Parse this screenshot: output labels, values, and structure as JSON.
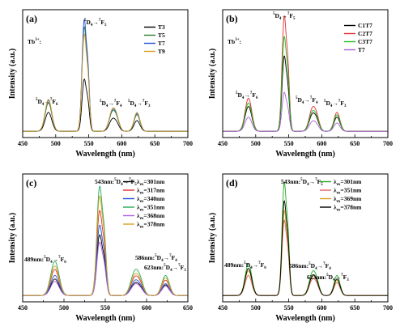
{
  "chart_data": [
    {
      "panel": "(a)",
      "type": "line",
      "xlabel": "Wavelength (nm)",
      "ylabel": "Intensity (a.u.)",
      "xlim": [
        450,
        700
      ],
      "xticks": [
        450,
        500,
        550,
        600,
        650,
        700
      ],
      "ion_label": "Tb",
      "ion_sup": "3+",
      "ion_suffix": ":",
      "annotations": [
        {
          "prefix": "",
          "pre": "5",
          "a": "D",
          "sa": "4",
          "arrow": "→",
          "post": "7",
          "b": "F",
          "sb": "6",
          "peak": 489
        },
        {
          "prefix": "",
          "pre": "5",
          "a": "D",
          "sa": "4",
          "arrow": "→",
          "post": "7",
          "b": "F",
          "sb": "5",
          "peak": 543
        },
        {
          "prefix": "",
          "pre": "5",
          "a": "D",
          "sa": "4",
          "arrow": "→",
          "post": "7",
          "b": "F",
          "sb": "4",
          "peak": 586
        },
        {
          "prefix": "",
          "pre": "5",
          "a": "D",
          "sa": "4",
          "arrow": "→",
          "post": "7",
          "b": "F",
          "sb": "3",
          "peak": 623
        }
      ],
      "legend_position": "top-right",
      "series": [
        {
          "name": "T3",
          "color": "#000000",
          "peaks": [
            0.16,
            0.43,
            0.1,
            0.09
          ]
        },
        {
          "name": "T5",
          "color": "#2a7d2a",
          "peaks": [
            0.24,
            0.86,
            0.16,
            0.14
          ]
        },
        {
          "name": "T7",
          "color": "#1f4fd8",
          "peaks": [
            0.26,
            0.92,
            0.17,
            0.15
          ]
        },
        {
          "name": "T9",
          "color": "#d8a020",
          "peaks": [
            0.27,
            0.8,
            0.18,
            0.16
          ]
        }
      ]
    },
    {
      "panel": "(b)",
      "type": "line",
      "xlabel": "Wavelength (nm)",
      "ylabel": "Intensity (a.u.)",
      "xlim": [
        450,
        700
      ],
      "xticks": [
        450,
        500,
        550,
        600,
        650,
        700
      ],
      "ion_label": "Tb",
      "ion_sup": "3+",
      "ion_suffix": ":",
      "annotations": [
        {
          "prefix": "",
          "pre": "5",
          "a": "D",
          "sa": "4",
          "arrow": "→",
          "post": "7",
          "b": "F",
          "sb": "6",
          "peak": 489
        },
        {
          "prefix": "",
          "pre": "5",
          "a": "D",
          "sa": "4",
          "arrow": "→",
          "post": "7",
          "b": "F",
          "sb": "5",
          "peak": 543
        },
        {
          "prefix": "",
          "pre": "5",
          "a": "D",
          "sa": "4",
          "arrow": "→",
          "post": "7",
          "b": "F",
          "sb": "4",
          "peak": 586
        },
        {
          "prefix": "",
          "pre": "5",
          "a": "D",
          "sa": "4",
          "arrow": "→",
          "post": "7",
          "b": "F",
          "sb": "3",
          "peak": 623
        }
      ],
      "legend_position": "top-right",
      "series": [
        {
          "name": "C1T7",
          "color": "#000000",
          "peaks": [
            0.21,
            0.62,
            0.14,
            0.12
          ]
        },
        {
          "name": "C2T7",
          "color": "#e03030",
          "peaks": [
            0.28,
            0.95,
            0.19,
            0.16
          ]
        },
        {
          "name": "C3T7",
          "color": "#22bb22",
          "peaks": [
            0.24,
            0.78,
            0.16,
            0.14
          ]
        },
        {
          "name": "T7",
          "color": "#b060e0",
          "peaks": [
            0.12,
            0.32,
            0.08,
            0.07
          ]
        }
      ]
    },
    {
      "panel": "(c)",
      "type": "line",
      "xlabel": "Wavelength (nm)",
      "ylabel": "Intensity (a.u.)",
      "xlim": [
        450,
        650
      ],
      "xticks": [
        450,
        500,
        550,
        600,
        650
      ],
      "annotations": [
        {
          "prefix": "489nm:",
          "pre": "5",
          "a": "D",
          "sa": "4",
          "arrow": "→",
          "post": "7",
          "b": "F",
          "sb": "6",
          "peak": 489
        },
        {
          "prefix": "543nm:",
          "pre": "5",
          "a": "D",
          "sa": "4",
          "arrow": "→",
          "post": "7",
          "b": "F",
          "sb": "5",
          "peak": 543
        },
        {
          "prefix": "586nm:",
          "pre": "5",
          "a": "D",
          "sa": "4",
          "arrow": "→",
          "post": "7",
          "b": "F",
          "sb": "4",
          "peak": 586
        },
        {
          "prefix": "623nm:",
          "pre": "5",
          "a": "D",
          "sa": "4",
          "arrow": "→",
          "post": "7",
          "b": "F",
          "sb": "3",
          "peak": 623
        }
      ],
      "legend_position": "top-right",
      "series": [
        {
          "name": "λ",
          "sub": "ex",
          "value": "=301nm",
          "color": "#000000",
          "peaks": [
            0.14,
            0.5,
            0.1,
            0.09
          ]
        },
        {
          "name": "λ",
          "sub": "ex",
          "value": "=317nm",
          "color": "#e03030",
          "peaks": [
            0.22,
            0.7,
            0.15,
            0.13
          ]
        },
        {
          "name": "λ",
          "sub": "ex",
          "value": "=340nm",
          "color": "#1f4fd8",
          "peaks": [
            0.17,
            0.58,
            0.12,
            0.1
          ]
        },
        {
          "name": "λ",
          "sub": "ex",
          "value": "=351nm",
          "color": "#22aa55",
          "peaks": [
            0.29,
            0.9,
            0.2,
            0.17
          ]
        },
        {
          "name": "λ",
          "sub": "ex",
          "value": "=368nm",
          "color": "#b060e0",
          "peaks": [
            0.12,
            0.44,
            0.09,
            0.08
          ]
        },
        {
          "name": "λ",
          "sub": "ex",
          "value": "=378nm",
          "color": "#d8a020",
          "peaks": [
            0.25,
            0.82,
            0.17,
            0.15
          ]
        }
      ]
    },
    {
      "panel": "(d)",
      "type": "line",
      "xlabel": "Wavelength (nm)",
      "ylabel": "Intensity (a.u.)",
      "xlim": [
        450,
        700
      ],
      "xticks": [
        450,
        500,
        550,
        600,
        650,
        700
      ],
      "annotations": [
        {
          "prefix": "489nm:",
          "pre": "5",
          "a": "D",
          "sa": "4",
          "arrow": "→",
          "post": "7",
          "b": "F",
          "sb": "6",
          "peak": 489
        },
        {
          "prefix": "543nm:",
          "pre": "5",
          "a": "D",
          "sa": "4",
          "arrow": "→",
          "post": "7",
          "b": "F",
          "sb": "5",
          "peak": 543
        },
        {
          "prefix": "586nm:",
          "pre": "5",
          "a": "D",
          "sa": "4",
          "arrow": "→",
          "post": "7",
          "b": "F",
          "sb": "4",
          "peak": 586
        },
        {
          "prefix": "623nm:",
          "pre": "5",
          "a": "D",
          "sa": "4",
          "arrow": "→",
          "post": "7",
          "b": "F",
          "sb": "3",
          "peak": 623
        }
      ],
      "legend_position": "top-right",
      "series": [
        {
          "name": "λ",
          "sub": "ex",
          "value": "=301nm",
          "color": "#22aa22",
          "peaks": [
            0.27,
            0.93,
            0.19,
            0.17
          ]
        },
        {
          "name": "λ",
          "sub": "ex",
          "value": "=351nm",
          "color": "#e06060",
          "peaks": [
            0.17,
            0.62,
            0.13,
            0.11
          ]
        },
        {
          "name": "λ",
          "sub": "ex",
          "value": "=369nm",
          "color": "#d8a020",
          "peaks": [
            0.21,
            0.7,
            0.15,
            0.13
          ]
        },
        {
          "name": "λ",
          "sub": "ex",
          "value": "=378nm",
          "color": "#000000",
          "peaks": [
            0.23,
            0.78,
            0.16,
            0.14
          ]
        }
      ]
    }
  ]
}
